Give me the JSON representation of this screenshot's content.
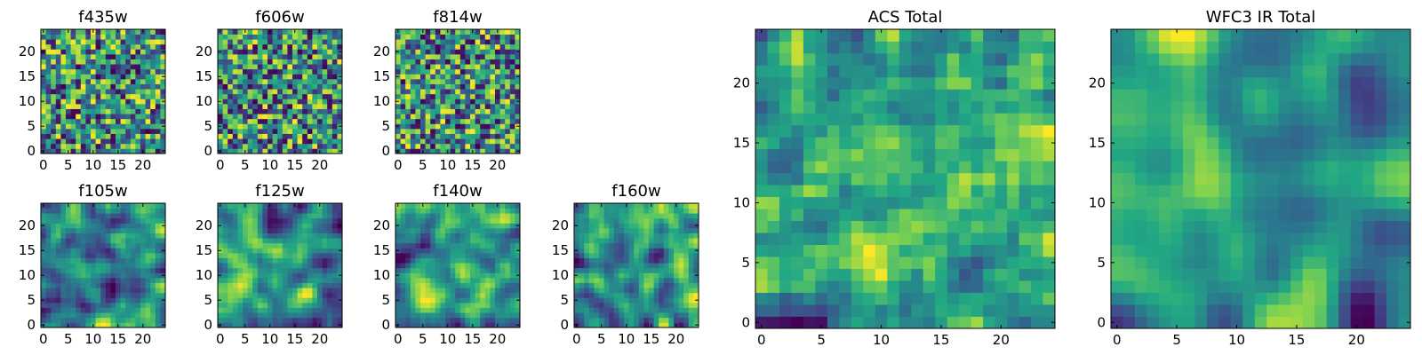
{
  "colormap": {
    "name": "viridis",
    "stops": [
      "#440154",
      "#414487",
      "#2a788e",
      "#22a884",
      "#7ad151",
      "#fde725"
    ]
  },
  "chart_data": [
    {
      "type": "heatmap",
      "title": "f435w",
      "grid": 25,
      "seed": 11,
      "smooth": 0,
      "xticks": [
        0,
        5,
        10,
        15,
        20
      ],
      "yticks": [
        0,
        5,
        10,
        15,
        20
      ],
      "xlim": [
        -0.5,
        24.5
      ],
      "ylim": [
        -0.5,
        24.5
      ],
      "xlabel": "",
      "ylabel": "",
      "values": []
    },
    {
      "type": "heatmap",
      "title": "f606w",
      "grid": 25,
      "seed": 23,
      "smooth": 0,
      "xticks": [
        0,
        5,
        10,
        15,
        20
      ],
      "yticks": [
        0,
        5,
        10,
        15,
        20
      ],
      "xlim": [
        -0.5,
        24.5
      ],
      "ylim": [
        -0.5,
        24.5
      ],
      "xlabel": "",
      "ylabel": "",
      "values": []
    },
    {
      "type": "heatmap",
      "title": "f814w",
      "grid": 25,
      "seed": 37,
      "smooth": 0,
      "xticks": [
        0,
        5,
        10,
        15,
        20
      ],
      "yticks": [
        0,
        5,
        10,
        15,
        20
      ],
      "xlim": [
        -0.5,
        24.5
      ],
      "ylim": [
        -0.5,
        24.5
      ],
      "xlabel": "",
      "ylabel": "",
      "values": []
    },
    {
      "type": "heatmap",
      "title": "f105w",
      "grid": 25,
      "seed": 41,
      "smooth": 2,
      "xticks": [
        0,
        5,
        10,
        15,
        20
      ],
      "yticks": [
        0,
        5,
        10,
        15,
        20
      ],
      "xlim": [
        -0.5,
        24.5
      ],
      "ylim": [
        -0.5,
        24.5
      ],
      "xlabel": "",
      "ylabel": "",
      "values": []
    },
    {
      "type": "heatmap",
      "title": "f125w",
      "grid": 25,
      "seed": 53,
      "smooth": 2,
      "xticks": [
        0,
        5,
        10,
        15,
        20
      ],
      "yticks": [
        0,
        5,
        10,
        15,
        20
      ],
      "xlim": [
        -0.5,
        24.5
      ],
      "ylim": [
        -0.5,
        24.5
      ],
      "xlabel": "",
      "ylabel": "",
      "values": []
    },
    {
      "type": "heatmap",
      "title": "f140w",
      "grid": 25,
      "seed": 67,
      "smooth": 2,
      "xticks": [
        0,
        5,
        10,
        15,
        20
      ],
      "yticks": [
        0,
        5,
        10,
        15,
        20
      ],
      "xlim": [
        -0.5,
        24.5
      ],
      "ylim": [
        -0.5,
        24.5
      ],
      "xlabel": "",
      "ylabel": "",
      "values": []
    },
    {
      "type": "heatmap",
      "title": "f160w",
      "grid": 25,
      "seed": 79,
      "smooth": 2,
      "xticks": [
        0,
        5,
        10,
        15,
        20
      ],
      "yticks": [
        0,
        5,
        10,
        15,
        20
      ],
      "xlim": [
        -0.5,
        24.5
      ],
      "ylim": [
        -0.5,
        24.5
      ],
      "xlabel": "",
      "ylabel": "",
      "values": []
    },
    {
      "type": "heatmap",
      "title": "ACS Total",
      "grid": 25,
      "seed": 97,
      "smooth": 1,
      "xticks": [
        0,
        5,
        10,
        15,
        20
      ],
      "yticks": [
        0,
        5,
        10,
        15,
        20
      ],
      "xlim": [
        -0.5,
        24.5
      ],
      "ylim": [
        -0.5,
        24.5
      ],
      "xlabel": "",
      "ylabel": "",
      "values": []
    },
    {
      "type": "heatmap",
      "title": "WFC3 IR Total",
      "grid": 25,
      "seed": 131,
      "smooth": 3,
      "xticks": [
        0,
        5,
        10,
        15,
        20
      ],
      "yticks": [
        0,
        5,
        10,
        15,
        20
      ],
      "xlim": [
        -0.5,
        24.5
      ],
      "ylim": [
        -0.5,
        24.5
      ],
      "xlabel": "",
      "ylabel": "",
      "values": []
    }
  ]
}
